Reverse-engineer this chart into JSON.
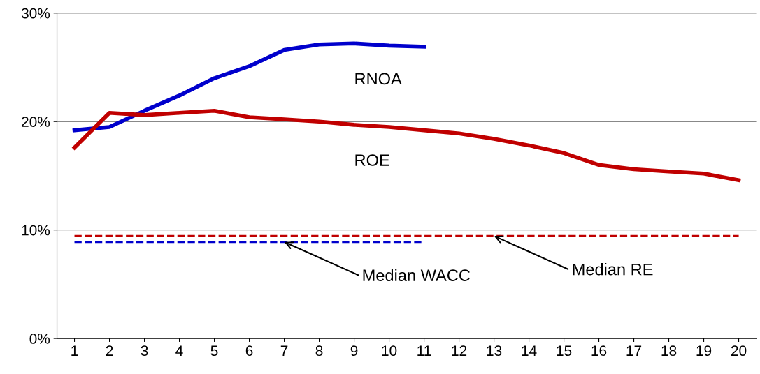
{
  "chart_data": {
    "type": "line",
    "categories": [
      "1",
      "2",
      "3",
      "4",
      "5",
      "6",
      "7",
      "8",
      "9",
      "10",
      "11",
      "12",
      "13",
      "14",
      "15",
      "16",
      "17",
      "18",
      "19",
      "20"
    ],
    "series": [
      {
        "name": "RNOA",
        "color": "#0000cc",
        "values": [
          19.2,
          19.5,
          21.0,
          22.4,
          24.0,
          25.1,
          26.6,
          27.1,
          27.2,
          27.0,
          26.9,
          null,
          null,
          null,
          null,
          null,
          null,
          null,
          null,
          null
        ]
      },
      {
        "name": "ROE",
        "color": "#c00000",
        "values": [
          17.6,
          20.8,
          20.6,
          20.8,
          21.0,
          20.4,
          20.2,
          20.0,
          19.7,
          19.5,
          19.2,
          18.9,
          18.4,
          17.8,
          17.1,
          16.0,
          15.6,
          15.4,
          15.2,
          14.6
        ]
      },
      {
        "color": "#c00000",
        "line_style": "dashed",
        "values": [
          9.45,
          9.45,
          9.45,
          9.45,
          9.45,
          9.45,
          9.45,
          9.45,
          9.45,
          9.45,
          9.45,
          9.45,
          9.45,
          9.45,
          9.45,
          9.45,
          9.45,
          9.45,
          9.45,
          9.45
        ]
      },
      {
        "color": "#0000cc",
        "line_style": "dashed",
        "values": [
          8.9,
          8.9,
          8.9,
          8.9,
          8.9,
          8.9,
          8.9,
          8.9,
          8.9,
          8.9,
          8.9,
          null,
          null,
          null,
          null,
          null,
          null,
          null,
          null,
          null
        ]
      }
    ],
    "ylim": [
      0,
      30
    ],
    "yticks": [
      {
        "value": 0,
        "label": "0%"
      },
      {
        "value": 10,
        "label": "10%"
      },
      {
        "value": 20,
        "label": "20%"
      },
      {
        "value": 30,
        "label": "30%"
      }
    ],
    "grid": "y",
    "legend": false,
    "marker": "none",
    "line_style": "solid",
    "annotations": [
      {
        "text": "Median WACC",
        "x": "7",
        "y": 8.9
      },
      {
        "text": "Median RE",
        "x": "13",
        "y": 9.45
      }
    ]
  }
}
